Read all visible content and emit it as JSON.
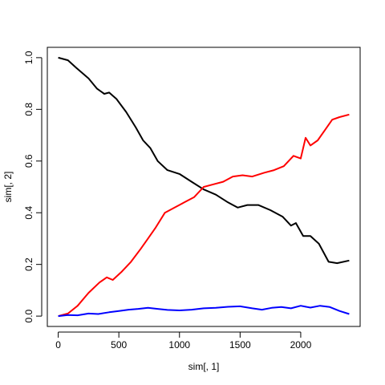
{
  "chart_data": {
    "type": "line",
    "title": "",
    "xlabel": "sim[, 1]",
    "ylabel": "sim[, 2]",
    "xlim": [
      -90,
      2490
    ],
    "ylim": [
      -0.04,
      1.04
    ],
    "x_ticks": [
      0,
      500,
      1000,
      1500,
      2000
    ],
    "y_ticks": [
      0.0,
      0.2,
      0.4,
      0.6,
      0.8,
      1.0
    ],
    "x_tick_labels": [
      "0",
      "500",
      "1000",
      "1500",
      "2000"
    ],
    "y_tick_labels": [
      "0.0",
      "0.2",
      "0.4",
      "0.6",
      "0.8",
      "1.0"
    ],
    "grid": false,
    "legend": "none",
    "series": [
      {
        "color": "#000000",
        "x": [
          0,
          80,
          150,
          250,
          320,
          380,
          420,
          480,
          560,
          640,
          700,
          760,
          820,
          900,
          1000,
          1100,
          1200,
          1300,
          1400,
          1480,
          1560,
          1650,
          1750,
          1850,
          1920,
          1960,
          2020,
          2080,
          2150,
          2230,
          2300,
          2400
        ],
        "y": [
          1.0,
          0.99,
          0.96,
          0.92,
          0.88,
          0.86,
          0.865,
          0.84,
          0.79,
          0.73,
          0.68,
          0.65,
          0.6,
          0.565,
          0.55,
          0.52,
          0.49,
          0.47,
          0.44,
          0.42,
          0.43,
          0.43,
          0.41,
          0.385,
          0.35,
          0.36,
          0.31,
          0.31,
          0.28,
          0.21,
          0.205,
          0.215
        ]
      },
      {
        "color": "#ff0000",
        "x": [
          0,
          80,
          160,
          250,
          340,
          400,
          450,
          520,
          600,
          680,
          740,
          800,
          880,
          960,
          1040,
          1120,
          1200,
          1280,
          1360,
          1440,
          1520,
          1600,
          1700,
          1780,
          1860,
          1940,
          2000,
          2040,
          2080,
          2140,
          2200,
          2260,
          2320,
          2400
        ],
        "y": [
          0.0,
          0.01,
          0.04,
          0.09,
          0.13,
          0.15,
          0.14,
          0.17,
          0.21,
          0.26,
          0.3,
          0.34,
          0.4,
          0.42,
          0.44,
          0.46,
          0.5,
          0.51,
          0.52,
          0.54,
          0.545,
          0.54,
          0.555,
          0.565,
          0.58,
          0.62,
          0.61,
          0.69,
          0.66,
          0.68,
          0.72,
          0.76,
          0.77,
          0.78
        ]
      },
      {
        "color": "#0000ff",
        "x": [
          0,
          80,
          160,
          250,
          330,
          420,
          500,
          580,
          660,
          740,
          820,
          900,
          1000,
          1100,
          1200,
          1300,
          1400,
          1500,
          1600,
          1680,
          1760,
          1840,
          1920,
          2000,
          2080,
          2160,
          2240,
          2320,
          2400
        ],
        "y": [
          0.0,
          0.004,
          0.003,
          0.01,
          0.008,
          0.015,
          0.02,
          0.025,
          0.028,
          0.032,
          0.028,
          0.024,
          0.022,
          0.025,
          0.03,
          0.032,
          0.036,
          0.038,
          0.03,
          0.025,
          0.032,
          0.035,
          0.03,
          0.04,
          0.033,
          0.04,
          0.035,
          0.02,
          0.008
        ]
      }
    ]
  }
}
